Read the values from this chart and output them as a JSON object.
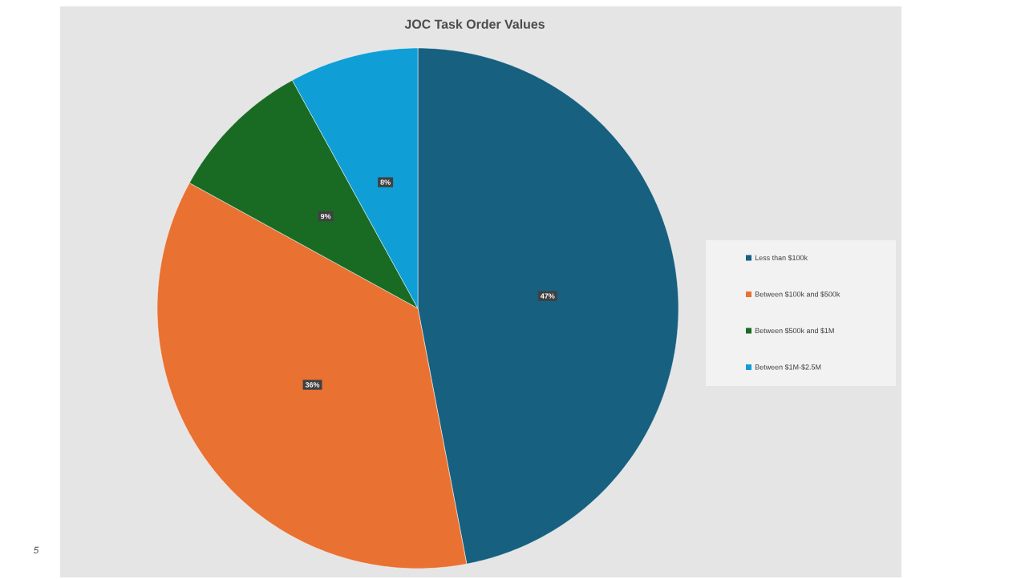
{
  "chart_data": {
    "type": "pie",
    "title": "JOC Task Order Values",
    "categories": [
      "Less than $100k",
      "Between $100k and $500k",
      "Between $500k and $1M",
      "Between $1M-$2.5M"
    ],
    "values": [
      47,
      36,
      9,
      8
    ],
    "value_labels": [
      "47%",
      "36%",
      "9%",
      "8%"
    ],
    "colors": [
      "#17607f",
      "#e97132",
      "#196b24",
      "#0f9ed5"
    ],
    "legend": "right",
    "annotations": [
      "5"
    ]
  }
}
